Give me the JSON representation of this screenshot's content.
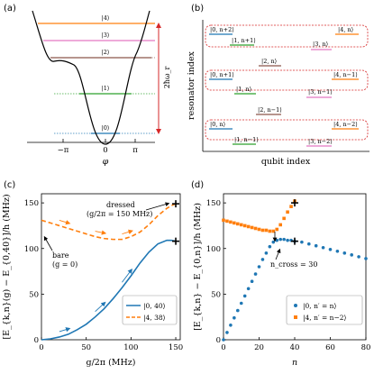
{
  "panels": {
    "a": {
      "label": "(a)",
      "xlabel": "φ",
      "xticks": [
        "−π",
        "0",
        "π"
      ],
      "levels": [
        {
          "label": "|0⟩",
          "color": "#1f77b4"
        },
        {
          "label": "|1⟩",
          "color": "#2ca02c"
        },
        {
          "label": "|2⟩",
          "color": "#8c564b"
        },
        {
          "label": "|3⟩",
          "color": "#e377c2"
        },
        {
          "label": "|4⟩",
          "color": "#ff7f0e"
        }
      ],
      "arrow_label": "2ħω_r"
    },
    "b": {
      "label": "(b)",
      "xlabel": "qubit index",
      "ylabel": "resonator index",
      "groups": [
        {
          "items": [
            {
              "label": "|0, n+2⟩",
              "color": "#1f77b4"
            },
            {
              "label": "|4, n⟩",
              "color": "#ff7f0e"
            },
            {
              "label": "|1, n+1⟩",
              "color": "#2ca02c"
            },
            {
              "label": "|3, n⟩",
              "color": "#e377c2"
            }
          ]
        },
        {
          "items": [
            {
              "label": "|2, n⟩",
              "color": "#8c564b"
            }
          ]
        },
        {
          "items": [
            {
              "label": "|0, n+1⟩",
              "color": "#1f77b4"
            },
            {
              "label": "|4, n−1⟩",
              "color": "#ff7f0e"
            },
            {
              "label": "|1, n⟩",
              "color": "#2ca02c"
            },
            {
              "label": "|3, n−1⟩",
              "color": "#e377c2"
            }
          ]
        },
        {
          "items": [
            {
              "label": "|2, n−1⟩",
              "color": "#8c564b"
            }
          ]
        },
        {
          "items": [
            {
              "label": "|0, n⟩",
              "color": "#1f77b4"
            },
            {
              "label": "|4, n−2⟩",
              "color": "#ff7f0e"
            },
            {
              "label": "|1, n−1⟩",
              "color": "#2ca02c"
            },
            {
              "label": "|3, n−2⟩",
              "color": "#e377c2"
            }
          ]
        }
      ]
    },
    "c": {
      "label": "(c)",
      "xlabel": "g/2π (MHz)",
      "ylabel": "[E_{k,n}(g) − E_{0,40}]/h (MHz)",
      "annotation_dressed": "dressed",
      "annotation_dressed_sub": "(g/2π = 150 MHz)",
      "annotation_bare": "bare",
      "annotation_bare_sub": "(g = 0)",
      "legend": [
        "|0, 40⟩",
        "|4, 38⟩"
      ]
    },
    "d": {
      "label": "(d)",
      "xlabel": "n",
      "ylabel": "[E_{k,n} − E_{0,n}]/h (MHz)",
      "annotation": "n_cross = 30",
      "legend": [
        "|0, n′ = n⟩",
        "|4, n′ = n−2⟩"
      ]
    }
  },
  "chart_data": [
    {
      "type": "line",
      "panel": "c",
      "xlabel": "g/2π (MHz)",
      "ylabel": "[E_{k,n}(g) − E_{0,40}]/h (MHz)",
      "xlim": [
        0,
        155
      ],
      "ylim": [
        0,
        160
      ],
      "xticks": [
        0,
        50,
        100,
        150
      ],
      "yticks": [
        0,
        50,
        100,
        150
      ],
      "series": [
        {
          "name": "|0, 40⟩",
          "color": "#1f77b4",
          "style": "solid",
          "x": [
            0,
            10,
            20,
            30,
            40,
            50,
            60,
            70,
            80,
            90,
            100,
            110,
            120,
            130,
            140,
            145,
            150
          ],
          "y": [
            0,
            1,
            3,
            6,
            11,
            17,
            25,
            34,
            45,
            57,
            70,
            84,
            96,
            105,
            109,
            109,
            108
          ]
        },
        {
          "name": "|4, 38⟩",
          "color": "#ff7f0e",
          "style": "dashed",
          "x": [
            0,
            10,
            20,
            30,
            40,
            50,
            60,
            70,
            80,
            90,
            100,
            110,
            120,
            130,
            140,
            145,
            150
          ],
          "y": [
            131,
            128,
            125,
            122,
            119,
            116,
            113,
            111,
            110,
            110,
            113,
            118,
            126,
            136,
            144,
            147,
            149
          ]
        }
      ],
      "markers": [
        {
          "x": 150,
          "y": 149
        },
        {
          "x": 150,
          "y": 108
        }
      ]
    },
    {
      "type": "scatter",
      "panel": "d",
      "xlabel": "n",
      "ylabel": "[E_{k,n} − E_{0,n}]/h (MHz)",
      "xlim": [
        0,
        80
      ],
      "ylim": [
        0,
        160
      ],
      "xticks": [
        0,
        20,
        40,
        60,
        80
      ],
      "yticks": [
        0,
        50,
        100,
        150
      ],
      "series": [
        {
          "name": "|0, n′ = n⟩",
          "color": "#1f77b4",
          "x": [
            0,
            2,
            4,
            6,
            8,
            10,
            12,
            14,
            16,
            18,
            20,
            22,
            24,
            26,
            28,
            30,
            32,
            34,
            36,
            38,
            40,
            44,
            48,
            52,
            56,
            60,
            64,
            68,
            72,
            76,
            80
          ],
          "y": [
            0,
            8,
            16,
            24,
            32,
            40,
            48,
            56,
            64,
            72,
            80,
            88,
            95,
            102,
            107,
            109,
            110,
            110,
            109,
            109,
            108,
            107,
            105,
            103,
            101,
            99,
            97,
            95,
            93,
            91,
            89
          ]
        },
        {
          "name": "|4, n′ = n−2⟩",
          "color": "#ff7f0e",
          "x": [
            0,
            2,
            4,
            6,
            8,
            10,
            12,
            14,
            16,
            18,
            20,
            22,
            24,
            26,
            28,
            30,
            32,
            34,
            36,
            38,
            40
          ],
          "y": [
            131,
            130,
            129,
            128,
            127,
            126,
            125,
            124,
            123,
            122,
            121,
            120,
            120,
            119,
            119,
            121,
            126,
            133,
            140,
            146,
            152
          ]
        }
      ],
      "markers": [
        {
          "x": 40,
          "y": 150
        },
        {
          "x": 40,
          "y": 108
        }
      ]
    }
  ]
}
